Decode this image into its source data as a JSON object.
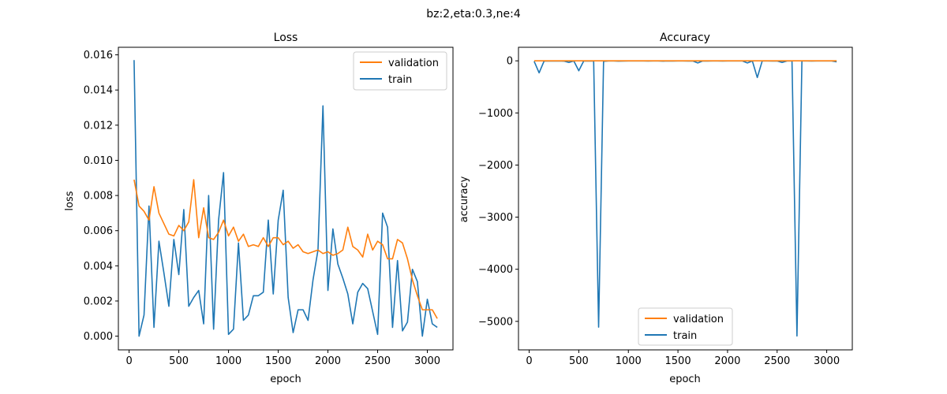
{
  "figure": {
    "suptitle": "bz:2,eta:0.3,ne:4"
  },
  "colors": {
    "validation": "#ff7f0e",
    "train": "#1f77b4",
    "axis": "#000000",
    "legend_border": "#cccccc"
  },
  "chart_data": [
    {
      "type": "line",
      "title": "Loss",
      "xlabel": "epoch",
      "ylabel": "loss",
      "xlim": [
        -108,
        3258
      ],
      "ylim": [
        -0.00078,
        0.01643
      ],
      "xticks": [
        0,
        500,
        1000,
        1500,
        2000,
        2500,
        3000
      ],
      "xtick_labels": [
        "0",
        "500",
        "1000",
        "1500",
        "2000",
        "2500",
        "3000"
      ],
      "yticks": [
        0,
        0.002,
        0.004,
        0.006,
        0.008,
        0.01,
        0.012,
        0.014,
        0.016
      ],
      "ytick_labels": [
        "0.000",
        "0.002",
        "0.004",
        "0.006",
        "0.008",
        "0.010",
        "0.012",
        "0.014",
        "0.016"
      ],
      "legend": {
        "position": "upper right",
        "entries": [
          "validation",
          "train"
        ]
      },
      "series": [
        {
          "name": "validation",
          "x": [
            50,
            100,
            150,
            200,
            250,
            300,
            350,
            400,
            450,
            500,
            550,
            600,
            650,
            700,
            750,
            800,
            850,
            900,
            950,
            1000,
            1050,
            1100,
            1150,
            1200,
            1250,
            1300,
            1350,
            1400,
            1450,
            1500,
            1550,
            1600,
            1650,
            1700,
            1750,
            1800,
            1850,
            1900,
            1950,
            2000,
            2050,
            2100,
            2150,
            2200,
            2250,
            2300,
            2350,
            2400,
            2450,
            2500,
            2550,
            2600,
            2650,
            2700,
            2750,
            2800,
            2850,
            2900,
            2950,
            3000,
            3050,
            3100
          ],
          "values": [
            0.0089,
            0.0074,
            0.0071,
            0.0066,
            0.0085,
            0.007,
            0.0064,
            0.0058,
            0.0057,
            0.0063,
            0.006,
            0.0065,
            0.0089,
            0.0056,
            0.0073,
            0.0056,
            0.0055,
            0.0059,
            0.0066,
            0.0057,
            0.0062,
            0.0054,
            0.0058,
            0.0051,
            0.0052,
            0.0051,
            0.0056,
            0.0051,
            0.0056,
            0.0056,
            0.0052,
            0.0054,
            0.005,
            0.0052,
            0.0048,
            0.0047,
            0.0048,
            0.0049,
            0.0047,
            0.0048,
            0.0046,
            0.0047,
            0.0049,
            0.0062,
            0.0051,
            0.0049,
            0.0045,
            0.0058,
            0.0049,
            0.0054,
            0.0052,
            0.0044,
            0.0044,
            0.0055,
            0.0053,
            0.0044,
            0.0032,
            0.0023,
            0.0015,
            0.0015,
            0.0015,
            0.001
          ]
        },
        {
          "name": "train",
          "x": [
            50,
            100,
            150,
            200,
            250,
            300,
            350,
            400,
            450,
            500,
            550,
            600,
            650,
            700,
            750,
            800,
            850,
            900,
            950,
            1000,
            1050,
            1100,
            1150,
            1200,
            1250,
            1300,
            1350,
            1400,
            1450,
            1500,
            1550,
            1600,
            1650,
            1700,
            1750,
            1800,
            1850,
            1900,
            1950,
            2000,
            2050,
            2100,
            2150,
            2200,
            2250,
            2300,
            2350,
            2400,
            2450,
            2500,
            2550,
            2600,
            2650,
            2700,
            2750,
            2800,
            2850,
            2900,
            2950,
            3000,
            3050,
            3100
          ],
          "values": [
            0.0157,
            0.0,
            0.0012,
            0.0074,
            0.0005,
            0.0054,
            0.0036,
            0.0017,
            0.0055,
            0.0035,
            0.0072,
            0.0017,
            0.0022,
            0.0026,
            0.0007,
            0.008,
            0.0004,
            0.0066,
            0.0093,
            0.0001,
            0.0004,
            0.0053,
            0.0009,
            0.0012,
            0.0023,
            0.0023,
            0.0025,
            0.0066,
            0.0024,
            0.0066,
            0.0083,
            0.0022,
            0.0002,
            0.0015,
            0.0015,
            0.0009,
            0.0032,
            0.0049,
            0.0131,
            0.0026,
            0.0061,
            0.0041,
            0.0033,
            0.0024,
            0.0007,
            0.0025,
            0.003,
            0.0027,
            0.0014,
            0.0001,
            0.007,
            0.0062,
            0.0005,
            0.0043,
            0.0003,
            0.0008,
            0.0038,
            0.0031,
            0.0,
            0.0021,
            0.0007,
            0.0005
          ]
        }
      ]
    },
    {
      "type": "line",
      "title": "Accuracy",
      "xlabel": "epoch",
      "ylabel": "accuracy",
      "xlim": [
        -108,
        3258
      ],
      "ylim": [
        -5547,
        260
      ],
      "xticks": [
        0,
        500,
        1000,
        1500,
        2000,
        2500,
        3000
      ],
      "xtick_labels": [
        "0",
        "500",
        "1000",
        "1500",
        "2000",
        "2500",
        "3000"
      ],
      "yticks": [
        -5000,
        -4000,
        -3000,
        -2000,
        -1000,
        0
      ],
      "ytick_labels": [
        "−5000",
        "−4000",
        "−3000",
        "−2000",
        "−1000",
        "0"
      ],
      "legend": {
        "position": "lower center",
        "entries": [
          "validation",
          "train"
        ]
      },
      "series": [
        {
          "name": "validation",
          "x": [
            50,
            100,
            150,
            200,
            250,
            300,
            350,
            400,
            450,
            500,
            550,
            600,
            650,
            700,
            750,
            800,
            850,
            900,
            950,
            1000,
            1050,
            1100,
            1150,
            1200,
            1250,
            1300,
            1350,
            1400,
            1450,
            1500,
            1550,
            1600,
            1650,
            1700,
            1750,
            1800,
            1850,
            1900,
            1950,
            2000,
            2050,
            2100,
            2150,
            2200,
            2250,
            2300,
            2350,
            2400,
            2450,
            2500,
            2550,
            2600,
            2650,
            2700,
            2750,
            2800,
            2850,
            2900,
            2950,
            3000,
            3050,
            3100
          ],
          "values": [
            0,
            0,
            0,
            0,
            0,
            0,
            0,
            0,
            0,
            0,
            0,
            0,
            0,
            0,
            0,
            0,
            0,
            0,
            0,
            0,
            0,
            0,
            0,
            0,
            0,
            0,
            0,
            0,
            0,
            0,
            0,
            0,
            0,
            0,
            0,
            0,
            0,
            0,
            0,
            0,
            0,
            0,
            0,
            0,
            0,
            0,
            0,
            0,
            0,
            0,
            0,
            0,
            0,
            0,
            0,
            0,
            0,
            0,
            0,
            0,
            0,
            0
          ]
        },
        {
          "name": "train",
          "x": [
            50,
            100,
            150,
            200,
            250,
            300,
            350,
            400,
            450,
            500,
            550,
            600,
            650,
            700,
            750,
            800,
            850,
            900,
            950,
            1000,
            1050,
            1100,
            1150,
            1200,
            1250,
            1300,
            1350,
            1400,
            1450,
            1500,
            1550,
            1600,
            1650,
            1700,
            1750,
            1800,
            1850,
            1900,
            1950,
            2000,
            2050,
            2100,
            2150,
            2200,
            2250,
            2300,
            2350,
            2400,
            2450,
            2500,
            2550,
            2600,
            2650,
            2700,
            2750,
            2800,
            2850,
            2900,
            2950,
            3000,
            3050,
            3100
          ],
          "values": [
            -10,
            -230,
            -5,
            -2,
            -3,
            -2,
            -5,
            -30,
            -2,
            -190,
            -2,
            -3,
            -2,
            -5110,
            -10,
            -2,
            -2,
            -5,
            -3,
            -2,
            -2,
            -2,
            -2,
            -3,
            -2,
            -2,
            -5,
            -2,
            -3,
            -2,
            -2,
            -3,
            -2,
            -40,
            -2,
            -3,
            -2,
            -2,
            -3,
            -2,
            -2,
            -2,
            -2,
            -40,
            -2,
            -320,
            -2,
            -2,
            -3,
            -2,
            -30,
            -2,
            -2,
            -5280,
            -2,
            -2,
            -3,
            -2,
            -2,
            -2,
            -2,
            -20
          ]
        }
      ]
    }
  ]
}
